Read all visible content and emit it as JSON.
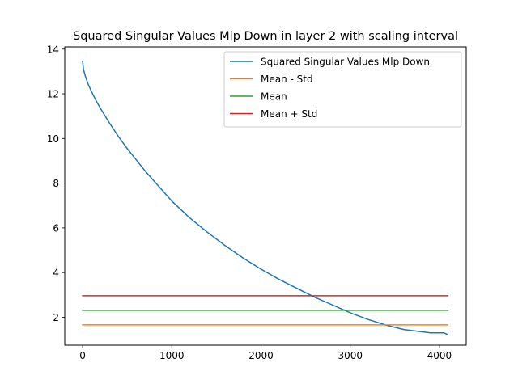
{
  "chart_data": {
    "type": "line",
    "title": "Squared Singular Values Mlp Down in layer 2 with scaling interval",
    "xlabel": "",
    "ylabel": "",
    "xlim": [
      -200,
      4300
    ],
    "ylim": [
      0.75,
      14.1
    ],
    "x_ticks": [
      0,
      1000,
      2000,
      3000,
      4000
    ],
    "x_tick_labels": [
      "0",
      "1000",
      "2000",
      "3000",
      "4000"
    ],
    "y_ticks": [
      2,
      4,
      6,
      8,
      10,
      12,
      14
    ],
    "y_tick_labels": [
      "2",
      "4",
      "6",
      "8",
      "10",
      "12",
      "14"
    ],
    "grid": false,
    "legend_position": "upper right",
    "series": [
      {
        "name": "Squared Singular Values Mlp Down",
        "color": "#1f77b4",
        "kind": "curve",
        "x": [
          0,
          10,
          30,
          60,
          100,
          150,
          200,
          300,
          400,
          500,
          600,
          700,
          800,
          900,
          1000,
          1200,
          1400,
          1600,
          1800,
          2000,
          2200,
          2400,
          2600,
          2800,
          3000,
          3200,
          3400,
          3600,
          3800,
          3900,
          4000,
          4050,
          4080,
          4095
        ],
        "y": [
          13.45,
          13.1,
          12.8,
          12.45,
          12.1,
          11.7,
          11.35,
          10.7,
          10.1,
          9.55,
          9.05,
          8.55,
          8.1,
          7.65,
          7.2,
          6.45,
          5.8,
          5.2,
          4.65,
          4.15,
          3.7,
          3.3,
          2.9,
          2.55,
          2.2,
          1.9,
          1.65,
          1.45,
          1.35,
          1.3,
          1.3,
          1.3,
          1.25,
          1.2
        ]
      },
      {
        "name": "Mean - Std",
        "color": "#ff7f0e",
        "kind": "hline",
        "x": [
          0,
          4095
        ],
        "y": [
          1.66,
          1.66
        ]
      },
      {
        "name": "Mean",
        "color": "#2ca02c",
        "kind": "hline",
        "x": [
          0,
          4095
        ],
        "y": [
          2.31,
          2.31
        ]
      },
      {
        "name": "Mean + Std",
        "color": "#d62728",
        "kind": "hline",
        "x": [
          0,
          4095
        ],
        "y": [
          2.96,
          2.96
        ]
      }
    ]
  }
}
